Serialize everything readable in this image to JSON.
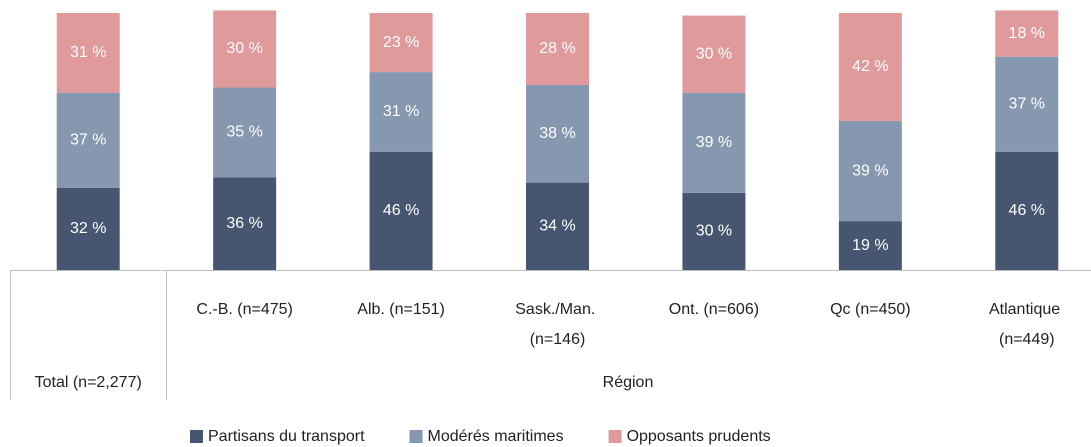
{
  "chart_data": {
    "type": "stacked_bar",
    "categories": [
      "Total (n=2,277)",
      "C.-B. (n=475)",
      "Alb. (n=151)",
      "Sask./Man. (n=146)",
      "Ont. (n=606)",
      "Qc (n=450)",
      "Atlantique (n=449)"
    ],
    "group_label": "Région",
    "ylim": [
      0,
      100
    ],
    "legend": "bottom",
    "series": [
      {
        "name": "Partisans du transport",
        "color": "#465570",
        "values": [
          32,
          36,
          46,
          34,
          30,
          19,
          46
        ],
        "value_labels": [
          "32 %",
          "36 %",
          "46 %",
          "34 %",
          "30 %",
          "19 %",
          "46 %"
        ]
      },
      {
        "name": "Modérés maritimes",
        "color": "#8697b0",
        "values": [
          37,
          35,
          31,
          38,
          39,
          39,
          37
        ],
        "value_labels": [
          "37 %",
          "35 %",
          "31 %",
          "38 %",
          "39 %",
          "39 %",
          "37 %"
        ]
      },
      {
        "name": "Opposants prudents",
        "color": "#e09a9b",
        "values": [
          31,
          30,
          23,
          28,
          30,
          42,
          18
        ],
        "value_labels": [
          "31 %",
          "30 %",
          "23 %",
          "28 %",
          "30 %",
          "42 %",
          "18 %"
        ]
      }
    ]
  }
}
